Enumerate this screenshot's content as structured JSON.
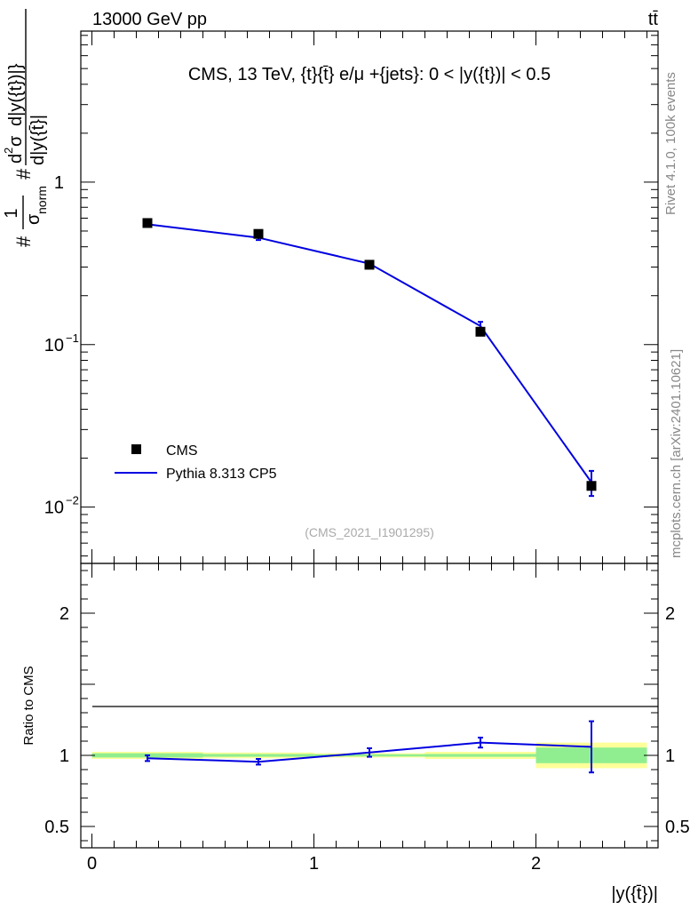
{
  "header": {
    "left": "13000 GeV pp",
    "right": "tt̄"
  },
  "side_labels": {
    "rivet": "Rivet 4.1.0,  100k events",
    "mcplots": "mcplots.cern.ch [arXiv:2401.10621]"
  },
  "colors": {
    "mc": "#0000e0",
    "data": "#000000",
    "band_inner": "#90ee90",
    "band_outer": "#ffff99"
  },
  "chart_data": [
    {
      "type": "scatter",
      "panel": "main",
      "title": "CMS, 13 TeV, {t}{t̄} e/μ +{jets}: 0 < |y({t})| < 0.5",
      "watermark": "(CMS_2021_I1901295)",
      "ylabel_parts": [
        "#",
        "1",
        "σ",
        "norm",
        "#",
        "d",
        "2",
        "σ",
        "d|y({t̄}|",
        "d|y({t})|}"
      ],
      "yscale": "log",
      "xlim": [
        -0.05,
        2.55
      ],
      "ylim": [
        0.0045,
        8.5
      ],
      "ytick_labels": [
        {
          "value": 1,
          "base": "1",
          "exp": ""
        },
        {
          "value": 0.1,
          "base": "10",
          "exp": "−1"
        },
        {
          "value": 0.01,
          "base": "10",
          "exp": "−2"
        }
      ],
      "legend": {
        "position": "middle-left",
        "entries": [
          "CMS",
          "Pythia 8.313 CP5"
        ]
      },
      "series": [
        {
          "name": "CMS",
          "style": "markers",
          "x": [
            0.25,
            0.75,
            1.25,
            1.75,
            2.25
          ],
          "y": [
            0.56,
            0.48,
            0.31,
            0.12,
            0.0135
          ]
        },
        {
          "name": "Pythia 8.313 CP5",
          "style": "line",
          "x": [
            0.25,
            0.75,
            1.25,
            1.75,
            2.25
          ],
          "y": [
            0.55,
            0.455,
            0.315,
            0.13,
            0.0142
          ],
          "yerr": [
            0.01,
            0.015,
            0.008,
            0.008,
            0.0025
          ]
        }
      ]
    },
    {
      "type": "line",
      "panel": "ratio",
      "ylabel": "Ratio to CMS",
      "xlabel": "|y({t̄})|",
      "xlim": [
        -0.05,
        2.55
      ],
      "ylim": [
        0.35,
        2.35
      ],
      "xtick_labels": [
        "0",
        "1",
        "2"
      ],
      "xticks": [
        0,
        1,
        2
      ],
      "ytick_labels": [
        "0.5",
        "1",
        "2"
      ],
      "yticks": [
        0.5,
        1,
        2
      ],
      "bands": [
        {
          "x0": 0.0,
          "x1": 0.5,
          "inner": [
            0.985,
            1.015
          ],
          "outer": [
            0.975,
            1.025
          ]
        },
        {
          "x0": 0.5,
          "x1": 1.0,
          "inner": [
            0.99,
            1.01
          ],
          "outer": [
            0.98,
            1.02
          ]
        },
        {
          "x0": 1.0,
          "x1": 1.5,
          "inner": [
            0.992,
            1.008
          ],
          "outer": [
            0.985,
            1.015
          ]
        },
        {
          "x0": 1.5,
          "x1": 2.0,
          "inner": [
            0.99,
            1.01
          ],
          "outer": [
            0.975,
            1.025
          ]
        },
        {
          "x0": 2.0,
          "x1": 2.5,
          "inner": [
            0.945,
            1.055
          ],
          "outer": [
            0.91,
            1.09
          ]
        }
      ],
      "series": [
        {
          "name": "Pythia 8.313 CP5",
          "x": [
            0.25,
            0.75,
            1.25,
            1.75,
            2.25
          ],
          "y": [
            0.98,
            0.955,
            1.02,
            1.09,
            1.06
          ],
          "yerr": [
            0.02,
            0.02,
            0.03,
            0.035,
            0.18
          ]
        }
      ]
    }
  ]
}
